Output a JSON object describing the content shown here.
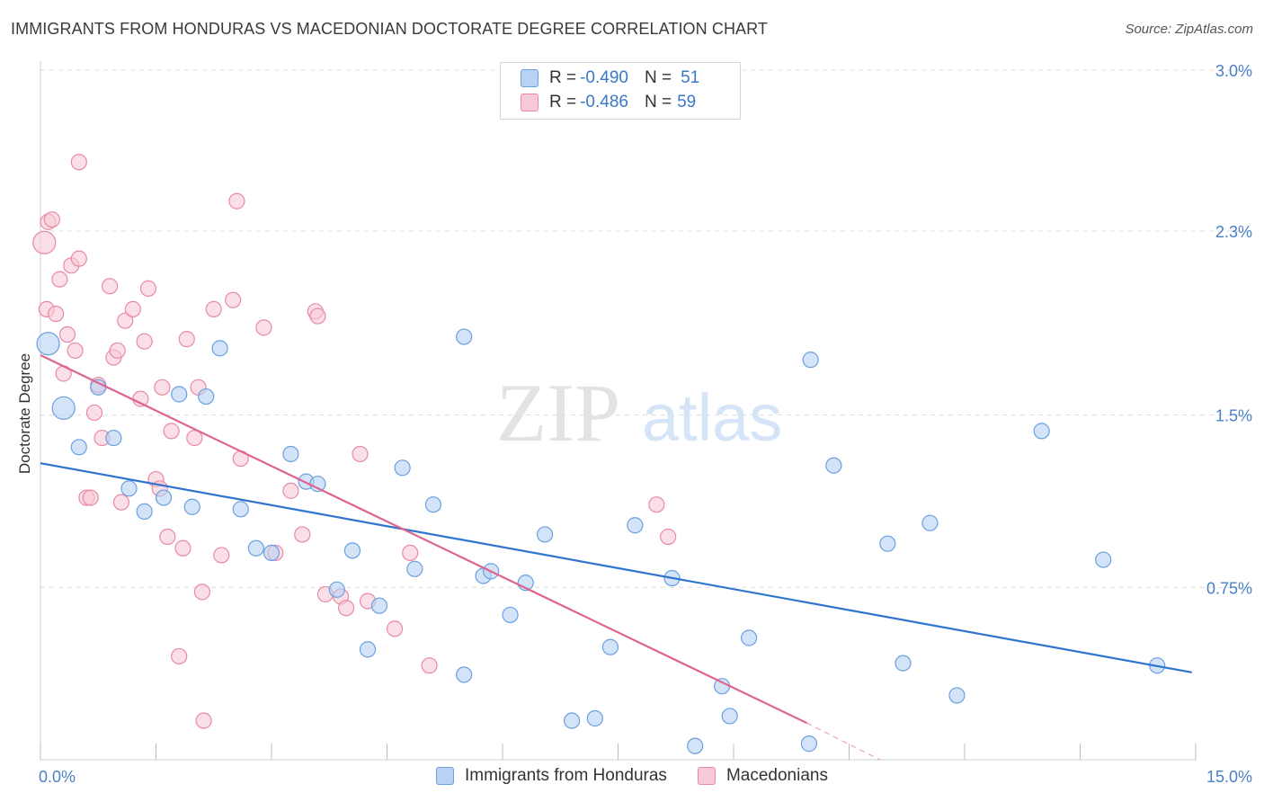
{
  "title": "IMMIGRANTS FROM HONDURAS VS MACEDONIAN DOCTORATE DEGREE CORRELATION CHART",
  "source": "Source: ZipAtlas.com",
  "watermark": {
    "zip": "ZIP",
    "atlas": "atlas"
  },
  "colors": {
    "blue_fill": "#b7d2f3",
    "blue_stroke": "#6aa0e0",
    "blue_line": "#2f74d0",
    "pink_fill": "#f8c9d6",
    "pink_stroke": "#e889a6",
    "pink_line": "#e0648f",
    "tick_text": "#4a7fc8",
    "grid": "#dddddd"
  },
  "legend": {
    "rows": [
      {
        "r_label": "R = ",
        "r_value": "-0.490",
        "n_label": "N = ",
        "n_value": "51"
      },
      {
        "r_label": "R = ",
        "r_value": "-0.486",
        "n_label": "N = ",
        "n_value": "59"
      }
    ]
  },
  "bottom_legend": [
    "Immigrants from Honduras",
    "Macedonians"
  ],
  "chart_data": {
    "type": "scatter",
    "title": "IMMIGRANTS FROM HONDURAS VS MACEDONIAN DOCTORATE DEGREE CORRELATION CHART",
    "xlabel": "",
    "ylabel": "Doctorate Degree",
    "xlim": [
      0,
      15
    ],
    "ylim": [
      0,
      3.0
    ],
    "x_tick_labels": [
      "0.0%",
      "15.0%"
    ],
    "y_ticks": [
      0.75,
      1.5,
      2.3,
      3.0
    ],
    "y_tick_labels": [
      "0.75%",
      "1.5%",
      "2.3%",
      "3.0%"
    ],
    "grid": "horizontal dashed",
    "legend_position": "top-center",
    "series": [
      {
        "name": "Immigrants from Honduras",
        "color": "#6aa0e0",
        "trend": {
          "x": [
            0,
            14.95
          ],
          "y": [
            1.29,
            0.38
          ]
        },
        "points": [
          [
            0.1,
            1.81,
            2
          ],
          [
            0.3,
            1.53,
            2
          ],
          [
            0.5,
            1.36,
            1
          ],
          [
            0.75,
            1.62,
            1
          ],
          [
            0.95,
            1.4,
            1
          ],
          [
            1.15,
            1.18,
            1
          ],
          [
            1.35,
            1.08,
            1
          ],
          [
            1.6,
            1.14,
            1
          ],
          [
            1.8,
            1.59,
            1
          ],
          [
            1.97,
            1.1,
            1
          ],
          [
            2.15,
            1.58,
            1
          ],
          [
            2.33,
            1.79,
            1
          ],
          [
            2.6,
            1.09,
            1
          ],
          [
            2.8,
            0.92,
            1
          ],
          [
            3.0,
            0.9,
            1
          ],
          [
            3.25,
            1.33,
            1
          ],
          [
            3.45,
            1.21,
            1
          ],
          [
            3.6,
            1.2,
            1
          ],
          [
            3.85,
            0.74,
            1
          ],
          [
            4.05,
            0.91,
            1
          ],
          [
            4.25,
            0.48,
            1
          ],
          [
            4.4,
            0.67,
            1
          ],
          [
            4.7,
            1.27,
            1
          ],
          [
            4.86,
            0.83,
            1
          ],
          [
            5.1,
            1.11,
            1
          ],
          [
            5.5,
            0.37,
            1
          ],
          [
            5.75,
            0.8,
            1
          ],
          [
            5.85,
            0.82,
            1
          ],
          [
            6.1,
            0.63,
            1
          ],
          [
            6.3,
            0.77,
            1
          ],
          [
            6.55,
            0.98,
            1
          ],
          [
            6.9,
            0.17,
            1
          ],
          [
            7.2,
            0.18,
            1
          ],
          [
            7.4,
            0.49,
            1
          ],
          [
            7.72,
            1.02,
            1
          ],
          [
            8.2,
            0.79,
            1
          ],
          [
            8.5,
            0.06,
            1
          ],
          [
            8.85,
            0.32,
            1
          ],
          [
            8.95,
            0.19,
            1
          ],
          [
            9.2,
            0.53,
            1
          ],
          [
            9.98,
            0.07,
            1
          ],
          [
            10.0,
            1.74,
            1
          ],
          [
            10.3,
            1.28,
            1
          ],
          [
            11.0,
            0.94,
            1
          ],
          [
            11.2,
            0.42,
            1
          ],
          [
            11.55,
            1.03,
            1
          ],
          [
            11.9,
            0.28,
            1
          ],
          [
            5.5,
            1.84,
            1
          ],
          [
            13.0,
            1.43,
            1
          ],
          [
            13.8,
            0.87,
            1
          ],
          [
            14.5,
            0.41,
            1
          ]
        ]
      },
      {
        "name": "Macedonians",
        "color": "#e889a6",
        "trend": {
          "x": [
            0,
            9.95
          ],
          "y": [
            1.76,
            0.16
          ]
        },
        "trend_dashed": {
          "x": [
            9.95,
            10.9
          ],
          "y": [
            0.16,
            0.0
          ]
        },
        "points": [
          [
            0.05,
            2.25,
            2
          ],
          [
            0.08,
            1.96,
            1
          ],
          [
            0.1,
            2.34,
            1
          ],
          [
            0.15,
            2.35,
            1
          ],
          [
            0.2,
            1.94,
            1
          ],
          [
            0.25,
            2.09,
            1
          ],
          [
            0.3,
            1.68,
            1
          ],
          [
            0.35,
            1.85,
            1
          ],
          [
            0.4,
            2.15,
            1
          ],
          [
            0.45,
            1.78,
            1
          ],
          [
            0.5,
            2.18,
            1
          ],
          [
            0.5,
            2.6,
            1
          ],
          [
            0.6,
            1.14,
            1
          ],
          [
            0.65,
            1.14,
            1
          ],
          [
            0.7,
            1.51,
            1
          ],
          [
            0.75,
            1.63,
            1
          ],
          [
            0.8,
            1.4,
            1
          ],
          [
            0.9,
            2.06,
            1
          ],
          [
            0.95,
            1.75,
            1
          ],
          [
            1.0,
            1.78,
            1
          ],
          [
            1.05,
            1.12,
            1
          ],
          [
            1.1,
            1.91,
            1
          ],
          [
            1.2,
            1.96,
            1
          ],
          [
            1.3,
            1.57,
            1
          ],
          [
            1.35,
            1.82,
            1
          ],
          [
            1.4,
            2.05,
            1
          ],
          [
            1.5,
            1.22,
            1
          ],
          [
            1.55,
            1.18,
            1
          ],
          [
            1.58,
            1.62,
            1
          ],
          [
            1.65,
            0.97,
            1
          ],
          [
            1.7,
            1.43,
            1
          ],
          [
            1.8,
            0.45,
            1
          ],
          [
            1.85,
            0.92,
            1
          ],
          [
            1.9,
            1.83,
            1
          ],
          [
            2.0,
            1.4,
            1
          ],
          [
            2.05,
            1.62,
            1
          ],
          [
            2.1,
            0.73,
            1
          ],
          [
            2.12,
            0.17,
            1
          ],
          [
            2.25,
            1.96,
            1
          ],
          [
            2.35,
            0.89,
            1
          ],
          [
            2.5,
            2.0,
            1
          ],
          [
            2.55,
            2.43,
            1
          ],
          [
            2.6,
            1.31,
            1
          ],
          [
            2.9,
            1.88,
            1
          ],
          [
            3.05,
            0.9,
            1
          ],
          [
            3.25,
            1.17,
            1
          ],
          [
            3.4,
            0.98,
            1
          ],
          [
            3.57,
            1.95,
            1
          ],
          [
            3.9,
            0.71,
            1
          ],
          [
            3.97,
            0.66,
            1
          ],
          [
            4.15,
            1.33,
            1
          ],
          [
            4.25,
            0.69,
            1
          ],
          [
            4.6,
            0.57,
            1
          ],
          [
            4.8,
            0.9,
            1
          ],
          [
            5.05,
            0.41,
            1
          ],
          [
            8.0,
            1.11,
            1
          ],
          [
            8.15,
            0.97,
            1
          ],
          [
            3.6,
            1.93,
            1
          ],
          [
            3.7,
            0.72,
            1
          ]
        ]
      }
    ]
  }
}
